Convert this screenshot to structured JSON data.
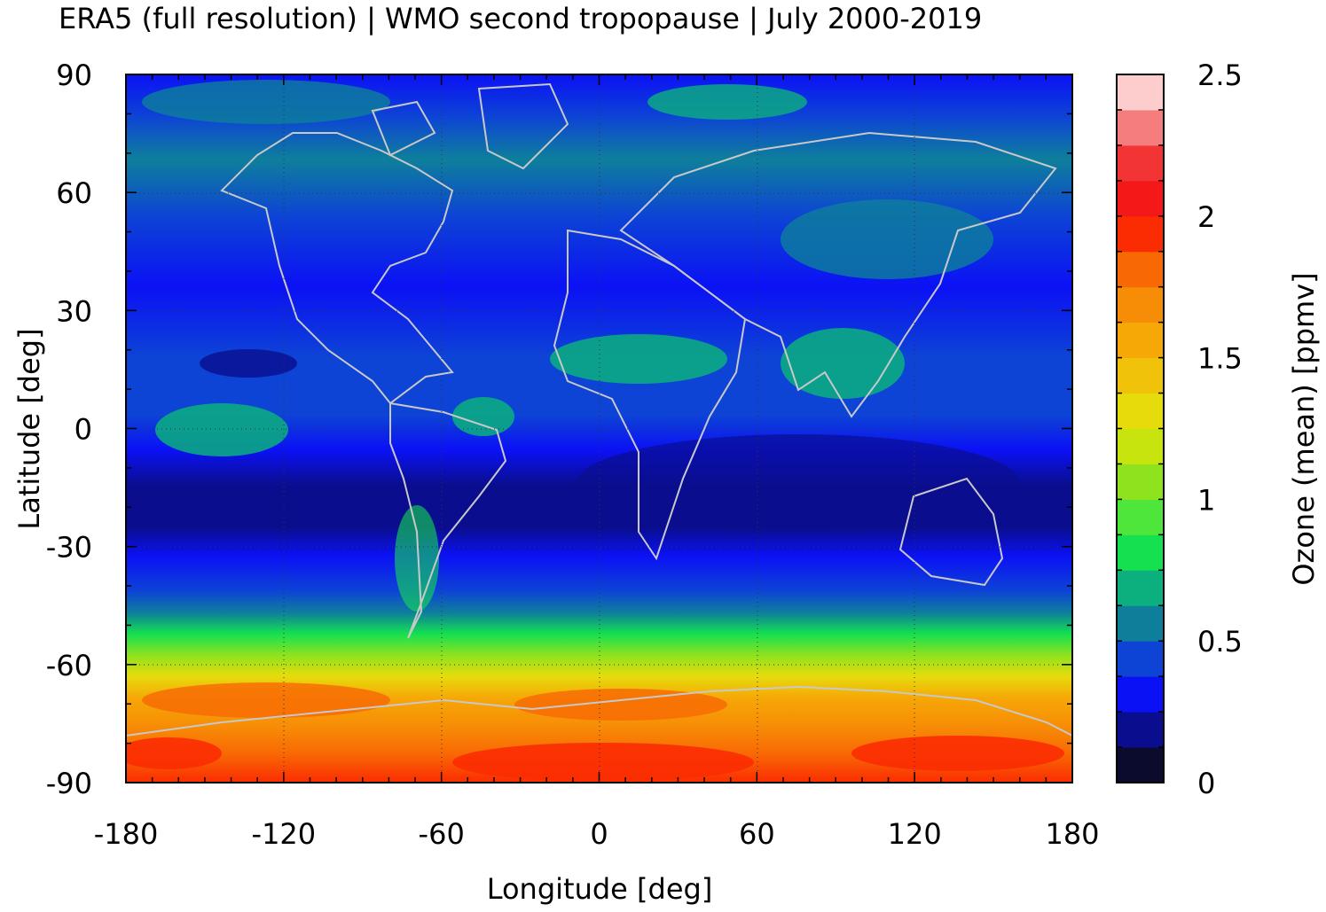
{
  "title": "ERA5 (full resolution) | WMO second tropopause | July 2000-2019",
  "chart_data": {
    "type": "heatmap",
    "title": "ERA5 (full resolution) | WMO second tropopause | July 2000-2019",
    "xlabel": "Longitude [deg]",
    "ylabel": "Latitude [deg]",
    "xlim": [
      -180,
      180
    ],
    "ylim": [
      -90,
      90
    ],
    "x_ticks": [
      -180,
      -120,
      -60,
      0,
      60,
      120,
      180
    ],
    "y_ticks": [
      90,
      60,
      30,
      0,
      -30,
      -60,
      -90
    ],
    "x_tick_labels": [
      "-180",
      "-120",
      "-60",
      "0",
      "60",
      "120",
      "180"
    ],
    "y_tick_labels": [
      "90",
      "60",
      "30",
      "0",
      "-30",
      "-60",
      "-90"
    ],
    "grid": "dotted, at major ticks",
    "overlay": "coastlines (light grey)",
    "colorbar": {
      "label": "Ozone (mean) [ppmv]",
      "range": [
        0,
        2.5
      ],
      "ticks": [
        0,
        0.5,
        1,
        1.5,
        2,
        2.5
      ],
      "tick_labels": [
        "0",
        "0.5",
        "1",
        "1.5",
        "2",
        "2.5"
      ],
      "levels": [
        "#0b0b2e",
        "#0a0e8e",
        "#0b11f5",
        "#0d44d5",
        "#0e7f9b",
        "#0cb07e",
        "#14e050",
        "#4ee63a",
        "#8ee21e",
        "#c8e40e",
        "#e6dc0c",
        "#f0c20a",
        "#f6a807",
        "#f78d06",
        "#f86804",
        "#fb2c02",
        "#f41818",
        "#f23434",
        "#f67d7d",
        "#fdcdcd"
      ]
    },
    "zonal_mean_by_latitude": {
      "lat": [
        90,
        80,
        70,
        60,
        50,
        40,
        30,
        20,
        10,
        0,
        -10,
        -20,
        -30,
        -40,
        -50,
        -60,
        -70,
        -80,
        -90
      ],
      "ozone_ppmv": [
        0.4,
        0.5,
        0.5,
        0.45,
        0.4,
        0.35,
        0.35,
        0.45,
        0.45,
        0.5,
        0.3,
        0.2,
        0.3,
        0.45,
        0.7,
        1.3,
        1.65,
        1.8,
        1.95
      ]
    }
  }
}
